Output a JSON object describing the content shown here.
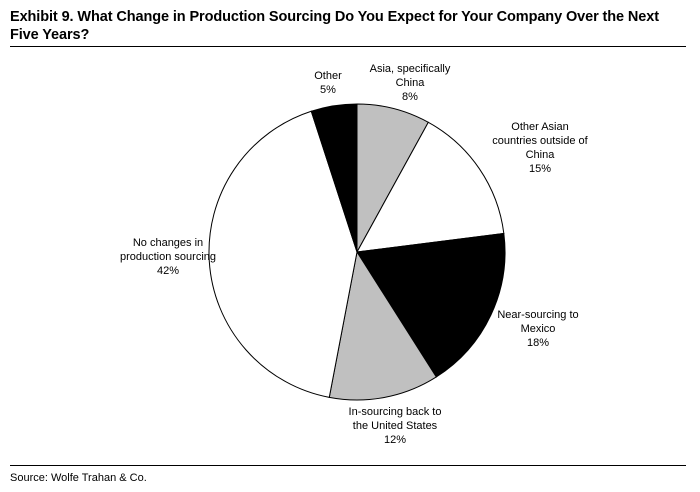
{
  "title": "Exhibit 9. What Change in Production Sourcing Do You Expect for Your Company Over the Next Five Years?",
  "source": "Source: Wolfe Trahan & Co.",
  "chart_data": {
    "type": "pie",
    "title": "Exhibit 9. What Change in Production Sourcing Do You Expect for Your Company Over the Next Five Years?",
    "slices": [
      {
        "label_lines": [
          "Asia, specifically",
          "China"
        ],
        "value": 8,
        "value_label": "8%",
        "color": "#c0c0c0"
      },
      {
        "label_lines": [
          "Other Asian",
          "countries outside of",
          "China"
        ],
        "value": 15,
        "value_label": "15%",
        "color": "#ffffff"
      },
      {
        "label_lines": [
          "Near-sourcing to",
          "Mexico"
        ],
        "value": 18,
        "value_label": "18%",
        "color": "#000000"
      },
      {
        "label_lines": [
          "In-sourcing back to",
          "the United States"
        ],
        "value": 12,
        "value_label": "12%",
        "color": "#c0c0c0"
      },
      {
        "label_lines": [
          "No changes in",
          "production sourcing"
        ],
        "value": 42,
        "value_label": "42%",
        "color": "#ffffff"
      },
      {
        "label_lines": [
          "Other"
        ],
        "value": 5,
        "value_label": "5%",
        "color": "#000000"
      }
    ],
    "start_angle_deg": 0,
    "direction": "clockwise"
  }
}
